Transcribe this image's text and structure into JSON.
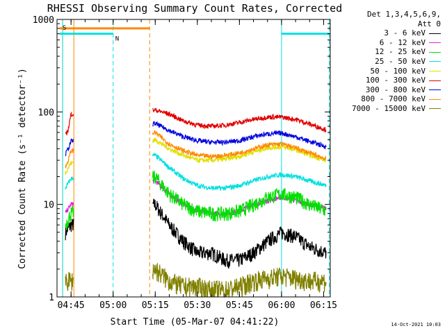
{
  "chart_data": {
    "type": "line",
    "title": "RHESSI Observing Summary Count Rates, Corrected",
    "xlabel": "Start Time (05-Mar-07 04:41:22)",
    "ylabel": "Corrected Count Rate (s⁻¹ detector⁻¹)",
    "yscale": "log",
    "ylim": [
      1,
      1000
    ],
    "xlim_minutes": [
      -1.37,
      96.0
    ],
    "x_ticks": [
      "04:45",
      "05:00",
      "05:15",
      "05:30",
      "05:45",
      "06:00",
      "06:15"
    ],
    "y_ticks": [
      "1",
      "10",
      "100",
      "1000"
    ],
    "grid": false,
    "legend": {
      "position": "right",
      "header": [
        "Det 1,3,4,5,6,9,",
        "Att 0"
      ]
    },
    "data_gap": [
      "04:46",
      "05:14"
    ],
    "series": [
      {
        "name": "3 - 6 keV",
        "color": "#000000",
        "x": [
          "04:43",
          "04:44",
          "04:45",
          "05:15",
          "05:20",
          "05:25",
          "05:30",
          "05:35",
          "05:40",
          "05:45",
          "05:50",
          "05:55",
          "06:00",
          "06:05",
          "06:10",
          "06:16"
        ],
        "values": [
          5,
          5.5,
          6,
          10,
          6,
          4,
          3,
          3,
          2.5,
          2.5,
          3,
          4,
          5,
          4.5,
          3.5,
          3
        ]
      },
      {
        "name": "6 - 12 keV",
        "color": "#e020e0",
        "x": [
          "04:43",
          "04:44",
          "04:45",
          "05:15",
          "05:20",
          "05:25",
          "05:30",
          "05:35",
          "05:40",
          "05:45",
          "05:50",
          "05:55",
          "06:00",
          "06:05",
          "06:10",
          "06:16"
        ],
        "values": [
          8,
          9,
          10,
          18,
          13,
          10,
          8.5,
          8,
          8,
          8.5,
          10,
          11,
          12,
          11,
          10,
          9
        ]
      },
      {
        "name": "12 - 25 keV",
        "color": "#00e000",
        "x": [
          "04:43",
          "04:44",
          "04:45",
          "05:15",
          "05:20",
          "05:25",
          "05:30",
          "05:35",
          "05:40",
          "05:45",
          "05:50",
          "05:55",
          "06:00",
          "06:05",
          "06:10",
          "06:16"
        ],
        "values": [
          6,
          7,
          8,
          20,
          13,
          10,
          8.5,
          8,
          8,
          8.5,
          10,
          12,
          13,
          12,
          10,
          8.5
        ]
      },
      {
        "name": "25 - 50 keV",
        "color": "#00e0e0",
        "x": [
          "04:43",
          "04:44",
          "04:45",
          "05:15",
          "05:20",
          "05:25",
          "05:30",
          "05:35",
          "05:40",
          "05:45",
          "05:50",
          "05:55",
          "06:00",
          "06:05",
          "06:10",
          "06:16"
        ],
        "values": [
          15,
          17,
          19,
          34,
          25,
          19,
          16,
          15,
          15,
          16,
          18,
          20,
          21,
          20,
          18,
          16
        ]
      },
      {
        "name": "50 - 100 keV",
        "color": "#e0e000",
        "x": [
          "04:43",
          "04:44",
          "04:45",
          "05:15",
          "05:20",
          "05:25",
          "05:30",
          "05:35",
          "05:40",
          "05:45",
          "05:50",
          "05:55",
          "06:00",
          "06:05",
          "06:10",
          "06:16"
        ],
        "values": [
          22,
          25,
          28,
          50,
          40,
          34,
          30,
          30,
          31,
          33,
          37,
          41,
          42,
          39,
          34,
          30
        ]
      },
      {
        "name": "100 - 300 keV",
        "color": "#e00000",
        "x": [
          "04:43",
          "04:44",
          "04:45",
          "05:15",
          "05:20",
          "05:25",
          "05:30",
          "05:35",
          "05:40",
          "05:45",
          "05:50",
          "05:55",
          "06:00",
          "06:05",
          "06:10",
          "06:16"
        ],
        "values": [
          55,
          65,
          95,
          105,
          95,
          80,
          72,
          70,
          72,
          77,
          83,
          88,
          88,
          83,
          74,
          64
        ]
      },
      {
        "name": "300 - 800 keV",
        "color": "#0000e0",
        "x": [
          "04:43",
          "04:44",
          "04:45",
          "05:15",
          "05:20",
          "05:25",
          "05:30",
          "05:35",
          "05:40",
          "05:45",
          "05:50",
          "05:55",
          "06:00",
          "06:05",
          "06:10",
          "06:16"
        ],
        "values": [
          35,
          40,
          48,
          75,
          63,
          54,
          49,
          47,
          47,
          49,
          54,
          58,
          59,
          54,
          48,
          42
        ]
      },
      {
        "name": "800 - 7000 keV",
        "color": "#ff8800",
        "x": [
          "04:43",
          "04:44",
          "04:45",
          "05:15",
          "05:20",
          "05:25",
          "05:30",
          "05:35",
          "05:40",
          "05:45",
          "05:50",
          "05:55",
          "06:00",
          "06:05",
          "06:10",
          "06:16"
        ],
        "values": [
          25,
          30,
          38,
          60,
          45,
          38,
          34,
          33,
          34,
          36,
          40,
          44,
          45,
          41,
          36,
          31
        ]
      },
      {
        "name": "7000 - 15000 keV",
        "color": "#808000",
        "x": [
          "04:43",
          "04:44",
          "04:45",
          "05:15",
          "05:20",
          "05:25",
          "05:30",
          "05:35",
          "05:40",
          "05:45",
          "05:50",
          "05:55",
          "06:00",
          "06:05",
          "06:10",
          "06:16"
        ],
        "values": [
          1.5,
          1.5,
          1.5,
          2,
          1.5,
          1.3,
          1.3,
          1.2,
          1.2,
          1.3,
          1.5,
          1.6,
          1.7,
          1.6,
          1.5,
          1.5
        ]
      }
    ],
    "flag_bars": [
      {
        "label": "S",
        "color": "#ff8800",
        "from": "04:41",
        "to": "05:13",
        "value": 800
      },
      {
        "label": "N",
        "color": "#00e0e0",
        "from": "04:41",
        "to": "05:00",
        "value": 700
      },
      {
        "label": "",
        "color": "#00e0e0",
        "from": "06:00",
        "to": "06:17",
        "value": 700
      }
    ],
    "vertical_markers": [
      {
        "time": "04:42",
        "color": "#ff8800",
        "style": "solid"
      },
      {
        "time": "04:42",
        "color": "#00e0e0",
        "style": "solid"
      },
      {
        "time": "04:46",
        "color": "#ff8800",
        "style": "solid"
      },
      {
        "time": "05:00",
        "color": "#00e0e0",
        "style": "dashed"
      },
      {
        "time": "05:13",
        "color": "#ff8800",
        "style": "dashed"
      },
      {
        "time": "06:00",
        "color": "#00e0e0",
        "style": "solid"
      },
      {
        "time": "06:17",
        "color": "#00e0e0",
        "style": "dashed"
      }
    ]
  },
  "footer": {
    "timestamp": "14-Oct-2021 10:03"
  }
}
